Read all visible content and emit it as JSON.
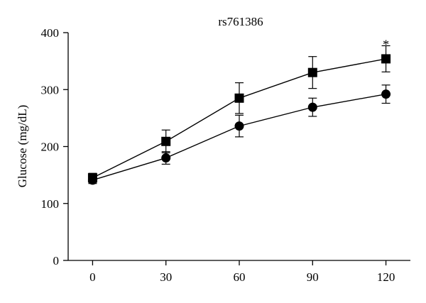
{
  "chart_data": {
    "type": "line",
    "title": "rs761386",
    "xlabel": "",
    "ylabel": "Glucose (mg/dL)",
    "x": [
      0,
      30,
      60,
      90,
      120
    ],
    "xticks": [
      "0",
      "30",
      "60",
      "90",
      "120"
    ],
    "yticks": [
      "0",
      "100",
      "200",
      "300",
      "400"
    ],
    "xlim": [
      -10,
      130
    ],
    "ylim": [
      0,
      400
    ],
    "grid": false,
    "series": [
      {
        "marker": "square",
        "values": [
          145,
          209,
          285,
          330,
          354
        ],
        "errors": [
          8,
          20,
          27,
          28,
          23
        ]
      },
      {
        "marker": "circle",
        "values": [
          141,
          180,
          236,
          269,
          292
        ],
        "errors": [
          6,
          11,
          19,
          16,
          16
        ]
      }
    ],
    "annotations": [
      {
        "text": "*",
        "x": 120,
        "y": 387
      }
    ],
    "colors": {
      "line": "#000000",
      "marker": "#000000"
    }
  }
}
